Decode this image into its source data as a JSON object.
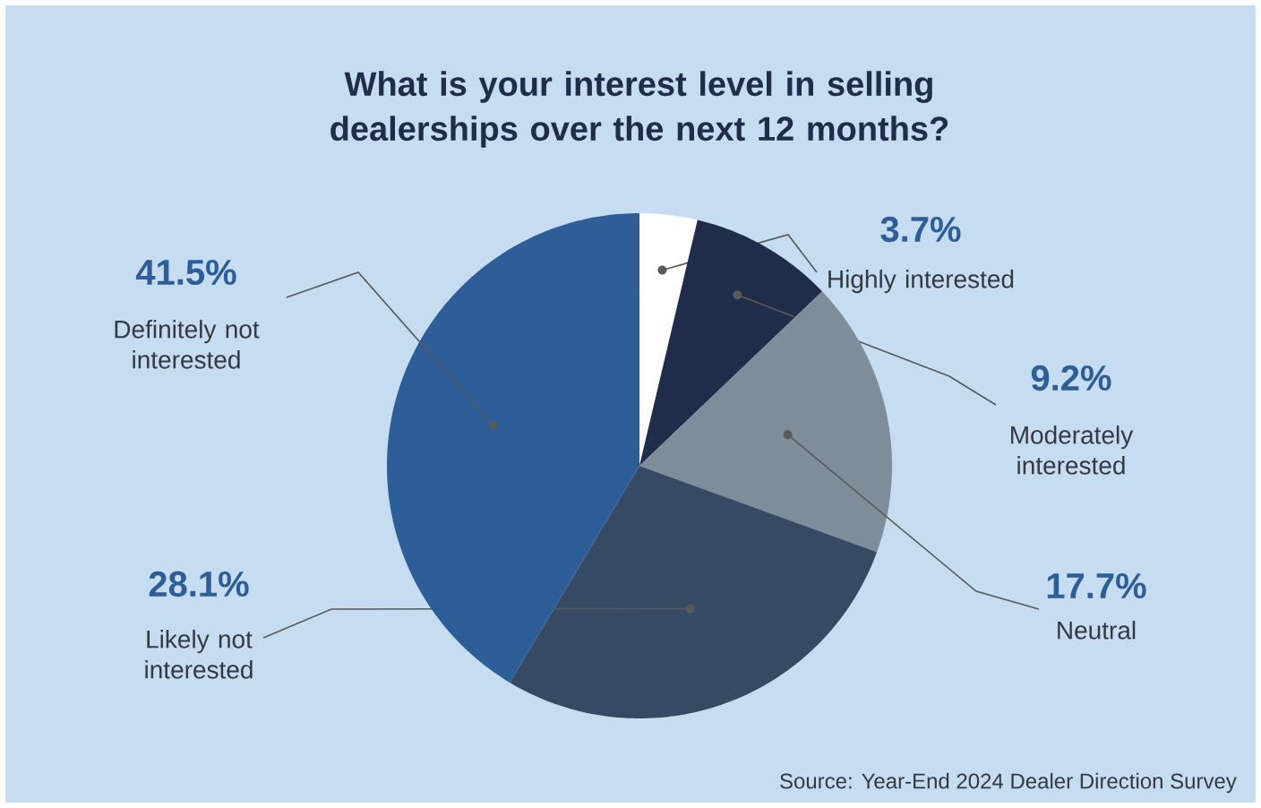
{
  "chart_data": {
    "type": "pie",
    "title": "What is your interest level in selling dealerships over the next 12 months?",
    "categories": [
      "Highly interested",
      "Moderately interested",
      "Neutral",
      "Likely not interested",
      "Definitely not interested"
    ],
    "values": [
      3.7,
      9.2,
      17.7,
      28.1,
      41.5
    ],
    "colors": [
      "#ffffff",
      "#1f2d4a",
      "#7e8d9a",
      "#364a63",
      "#2e5e98"
    ],
    "value_labels": [
      "3.7%",
      "9.2%",
      "17.7%",
      "28.1%",
      "41.5%"
    ],
    "annotations": [
      "Source: Year-End 2024 Dealer Direction Survey"
    ]
  }
}
